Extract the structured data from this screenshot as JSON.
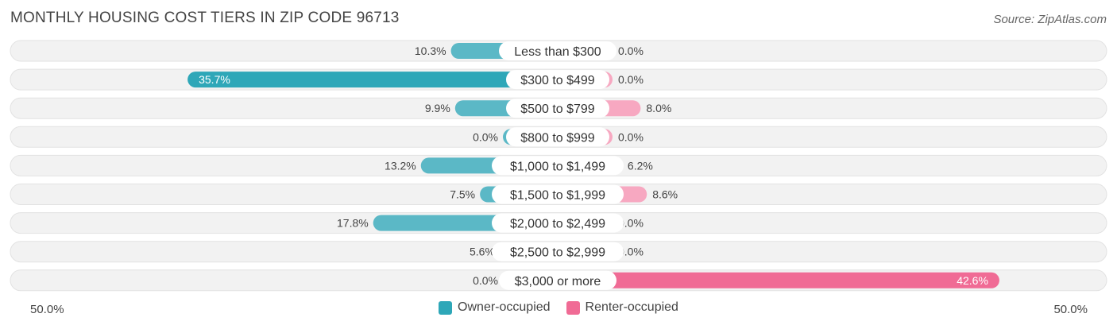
{
  "title": "MONTHLY HOUSING COST TIERS IN ZIP CODE 96713",
  "source": "Source: ZipAtlas.com",
  "axis": {
    "left_label": "50.0%",
    "right_label": "50.0%"
  },
  "legend": {
    "owner_label": "Owner-occupied",
    "renter_label": "Renter-occupied"
  },
  "colors": {
    "owner": "#5bb8c6",
    "owner_dark": "#2ea7b8",
    "renter": "#f7a8c1",
    "renter_dark": "#f06b95",
    "row_bg": "#f2f2f2"
  },
  "chart_data": {
    "type": "bar",
    "orientation": "horizontal-diverging",
    "xlim": [
      -50,
      50
    ],
    "categories": [
      "Less than $300",
      "$300 to $499",
      "$500 to $799",
      "$800 to $999",
      "$1,000 to $1,499",
      "$1,500 to $1,999",
      "$2,000 to $2,499",
      "$2,500 to $2,999",
      "$3,000 or more"
    ],
    "series": [
      {
        "name": "Owner-occupied",
        "values": [
          10.3,
          35.7,
          9.9,
          0.0,
          13.2,
          7.5,
          17.8,
          5.6,
          0.0
        ],
        "labels": [
          "10.3%",
          "35.7%",
          "9.9%",
          "0.0%",
          "13.2%",
          "7.5%",
          "17.8%",
          "5.6%",
          "0.0%"
        ]
      },
      {
        "name": "Renter-occupied",
        "values": [
          0.0,
          0.0,
          8.0,
          0.0,
          6.2,
          8.6,
          0.0,
          0.0,
          42.6
        ],
        "labels": [
          "0.0%",
          "0.0%",
          "8.0%",
          "0.0%",
          "6.2%",
          "8.6%",
          "0.0%",
          "0.0%",
          "42.6%"
        ]
      }
    ]
  }
}
